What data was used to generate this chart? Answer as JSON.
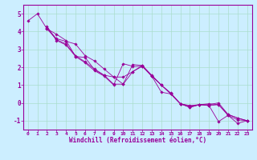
{
  "xlabel": "Windchill (Refroidissement éolien,°C)",
  "bg_color": "#cceeff",
  "line_color": "#990099",
  "grid_color": "#aaddcc",
  "xlim": [
    -0.5,
    23.5
  ],
  "ylim": [
    -1.5,
    5.5
  ],
  "yticks": [
    -1,
    0,
    1,
    2,
    3,
    4,
    5
  ],
  "xticks": [
    0,
    1,
    2,
    3,
    4,
    5,
    6,
    7,
    8,
    9,
    10,
    11,
    12,
    13,
    14,
    15,
    16,
    17,
    18,
    19,
    20,
    21,
    22,
    23
  ],
  "lines": [
    [
      0,
      4.6,
      1,
      5.0,
      2,
      4.15,
      3,
      3.55,
      4,
      3.3,
      5,
      2.65,
      6,
      2.3,
      7,
      1.9,
      8,
      1.55,
      9,
      1.05,
      10,
      1.05,
      11,
      2.15,
      12,
      2.1,
      13,
      1.5,
      14,
      1.0,
      15,
      0.5,
      16,
      -0.05,
      17,
      -0.15,
      18,
      -0.1,
      19,
      -0.15,
      20,
      -1.05,
      21,
      -0.7,
      22,
      -0.95,
      23,
      -1.0
    ],
    [
      2,
      4.15,
      3,
      3.85,
      4,
      3.5,
      5,
      2.6,
      6,
      2.25,
      7,
      1.8,
      8,
      1.5,
      9,
      1.0,
      10,
      2.2,
      11,
      2.05,
      12,
      2.05,
      13,
      1.5,
      14,
      0.6,
      15,
      0.5,
      16,
      -0.05,
      17,
      -0.25,
      18,
      -0.1,
      19,
      -0.15,
      20,
      -0.1,
      21,
      -0.7,
      22,
      -1.15,
      23,
      -1.0
    ],
    [
      2,
      4.3,
      3,
      3.5,
      4,
      3.25,
      5,
      2.6,
      6,
      2.55,
      7,
      1.85,
      8,
      1.55,
      9,
      1.45,
      10,
      1.05,
      11,
      1.75,
      12,
      2.1,
      13,
      1.55,
      14,
      1.0,
      15,
      0.5,
      16,
      -0.05,
      17,
      -0.25,
      18,
      -0.1,
      19,
      -0.1,
      20,
      0.0,
      21,
      -0.65,
      22,
      -0.85,
      23,
      -1.0
    ],
    [
      2,
      4.2,
      3,
      3.6,
      4,
      3.45,
      5,
      3.3,
      6,
      2.65,
      7,
      2.35,
      8,
      1.9,
      9,
      1.45,
      10,
      1.45,
      11,
      1.75,
      12,
      2.05,
      13,
      1.5,
      14,
      1.0,
      15,
      0.55,
      16,
      -0.05,
      17,
      -0.2,
      18,
      -0.1,
      19,
      -0.05,
      20,
      -0.1,
      21,
      -0.65,
      22,
      -0.85,
      23,
      -1.0
    ]
  ]
}
